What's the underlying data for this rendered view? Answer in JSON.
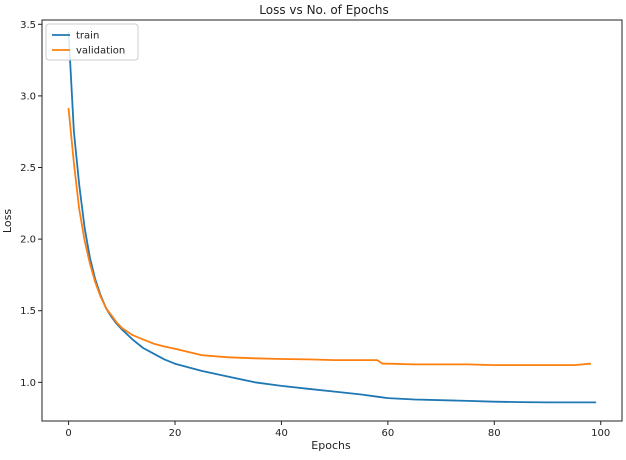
{
  "chart_data": {
    "type": "line",
    "title": "Loss vs No. of Epochs",
    "xlabel": "Epochs",
    "ylabel": "Loss",
    "xlim": [
      -5,
      104
    ],
    "ylim": [
      0.73,
      3.53
    ],
    "xticks": [
      0,
      20,
      40,
      60,
      80,
      100
    ],
    "yticks": [
      1.0,
      1.5,
      2.0,
      2.5,
      3.0,
      3.5
    ],
    "xtick_labels": [
      "0",
      "20",
      "40",
      "60",
      "80",
      "100"
    ],
    "ytick_labels": [
      "1.0",
      "1.5",
      "2.0",
      "2.5",
      "3.0",
      "3.5"
    ],
    "grid": false,
    "legend_position": "top-left",
    "series": [
      {
        "name": "train",
        "color": "#1f77b4",
        "x": [
          0,
          1,
          2,
          3,
          4,
          5,
          6,
          7,
          8,
          9,
          10,
          12,
          14,
          16,
          18,
          20,
          25,
          30,
          35,
          40,
          45,
          50,
          55,
          58,
          60,
          65,
          70,
          75,
          80,
          85,
          90,
          95,
          99
        ],
        "values": [
          3.44,
          2.75,
          2.38,
          2.08,
          1.87,
          1.72,
          1.61,
          1.52,
          1.46,
          1.41,
          1.37,
          1.3,
          1.24,
          1.2,
          1.16,
          1.13,
          1.08,
          1.04,
          1.0,
          0.975,
          0.955,
          0.935,
          0.915,
          0.9,
          0.89,
          0.88,
          0.875,
          0.87,
          0.865,
          0.862,
          0.86,
          0.86,
          0.86
        ]
      },
      {
        "name": "validation",
        "color": "#ff7f0e",
        "x": [
          0,
          1,
          2,
          3,
          4,
          5,
          6,
          7,
          8,
          9,
          10,
          12,
          14,
          16,
          18,
          20,
          25,
          30,
          35,
          40,
          45,
          50,
          55,
          58,
          59,
          60,
          65,
          70,
          75,
          80,
          85,
          90,
          95,
          98
        ],
        "values": [
          2.91,
          2.53,
          2.21,
          1.99,
          1.83,
          1.7,
          1.6,
          1.52,
          1.47,
          1.42,
          1.38,
          1.33,
          1.3,
          1.27,
          1.25,
          1.235,
          1.19,
          1.175,
          1.168,
          1.163,
          1.16,
          1.155,
          1.155,
          1.155,
          1.13,
          1.13,
          1.125,
          1.125,
          1.125,
          1.12,
          1.12,
          1.12,
          1.12,
          1.13
        ]
      }
    ]
  }
}
